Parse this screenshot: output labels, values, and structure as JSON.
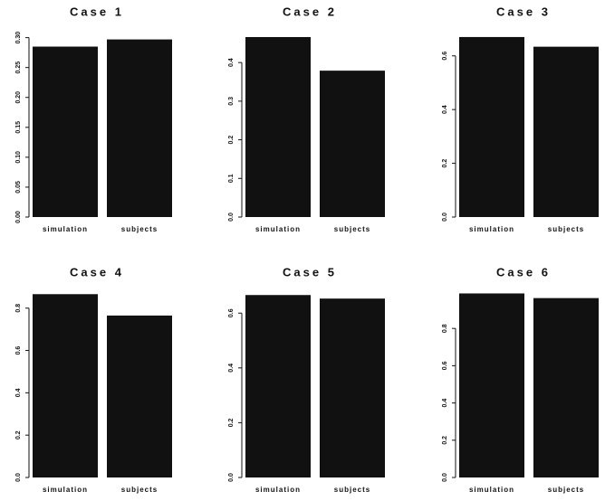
{
  "chart_data": [
    {
      "type": "bar",
      "title": "Case 1",
      "categories": [
        "simulation",
        "subjects"
      ],
      "values": [
        0.285,
        0.297
      ],
      "color": "#111111",
      "ylim": [
        0,
        0.31
      ],
      "yticks": [
        {
          "value": 0,
          "label": "0.00"
        },
        0.05,
        {
          "value": 0.1,
          "label": "0.10"
        },
        0.15,
        {
          "value": 0.2,
          "label": "0.20"
        },
        0.25,
        {
          "value": 0.3,
          "label": "0.30"
        }
      ]
    },
    {
      "type": "bar",
      "title": "Case 2",
      "categories": [
        "simulation",
        "subjects"
      ],
      "values": [
        0.466,
        0.379
      ],
      "color": "#111111",
      "ylim": [
        0,
        0.48
      ],
      "yticks": [
        {
          "value": 0,
          "label": "0.0"
        },
        0.1,
        0.2,
        0.3,
        0.4
      ]
    },
    {
      "type": "bar",
      "title": "Case 3",
      "categories": [
        "simulation",
        "subjects"
      ],
      "values": [
        0.67,
        0.634
      ],
      "color": "#111111",
      "ylim": [
        0,
        0.69
      ],
      "yticks": [
        {
          "value": 0,
          "label": "0.0"
        },
        0.2,
        0.4,
        0.6
      ]
    },
    {
      "type": "bar",
      "title": "Case 4",
      "categories": [
        "simulation",
        "subjects"
      ],
      "values": [
        0.866,
        0.765
      ],
      "color": "#111111",
      "ylim": [
        0,
        0.88
      ],
      "yticks": [
        {
          "value": 0,
          "label": "0.0"
        },
        0.2,
        0.4,
        0.6,
        0.8
      ]
    },
    {
      "type": "bar",
      "title": "Case 5",
      "categories": [
        "simulation",
        "subjects"
      ],
      "values": [
        0.666,
        0.653
      ],
      "color": "#111111",
      "ylim": [
        0,
        0.68
      ],
      "yticks": [
        {
          "value": 0,
          "label": "0.0"
        },
        0.2,
        0.4,
        0.6
      ]
    },
    {
      "type": "bar",
      "title": "Case 6",
      "categories": [
        "simulation",
        "subjects"
      ],
      "values": [
        0.988,
        0.963
      ],
      "color": "#111111",
      "ylim": [
        0,
        1.0
      ],
      "yticks": [
        {
          "value": 0,
          "label": "0.0"
        },
        0.2,
        0.4,
        0.6,
        0.8
      ]
    }
  ]
}
